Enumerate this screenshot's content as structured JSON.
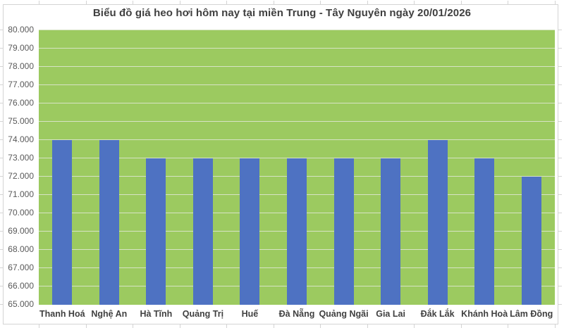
{
  "chart": {
    "title": "Biểu đồ giá heo hơi hôm nay tại miền Trung - Tây Nguyên ngày 20/01/2026"
  },
  "chart_data": {
    "type": "bar",
    "title": "Biểu đồ giá heo hơi hôm nay tại miền Trung - Tây Nguyên ngày 20/01/2026",
    "categories": [
      "Thanh Hoá",
      "Nghệ An",
      "Hà Tĩnh",
      "Quảng Trị",
      "Huế",
      "Đà Nẵng",
      "Quảng Ngãi",
      "Gia Lai",
      "Đắk Lắk",
      "Khánh Hoà",
      "Lâm Đồng"
    ],
    "values": [
      74000,
      74000,
      73000,
      73000,
      73000,
      73000,
      73000,
      73000,
      74000,
      73000,
      72000
    ],
    "unit": "VND/kg",
    "xlabel": "",
    "ylabel": "",
    "ylim": [
      65000,
      80000
    ],
    "ytick_step": 1000,
    "ytick_labels": [
      "80.000",
      "79.000",
      "78.000",
      "77.000",
      "76.000",
      "75.000",
      "74.000",
      "73.000",
      "72.000",
      "71.000",
      "70.000",
      "69.000",
      "68.000",
      "67.000",
      "66.000",
      "65.000"
    ],
    "grid": true,
    "legend": "none",
    "colors": {
      "bar": "#4e72c2",
      "plot_background": "#9cca60",
      "gridline": "#d7e3c5",
      "title_text": "#3f3f3f",
      "y_axis_text": "#595959",
      "x_axis_text": "#404040",
      "chart_border": "#d4d4d4",
      "background": "#ffffff"
    }
  }
}
